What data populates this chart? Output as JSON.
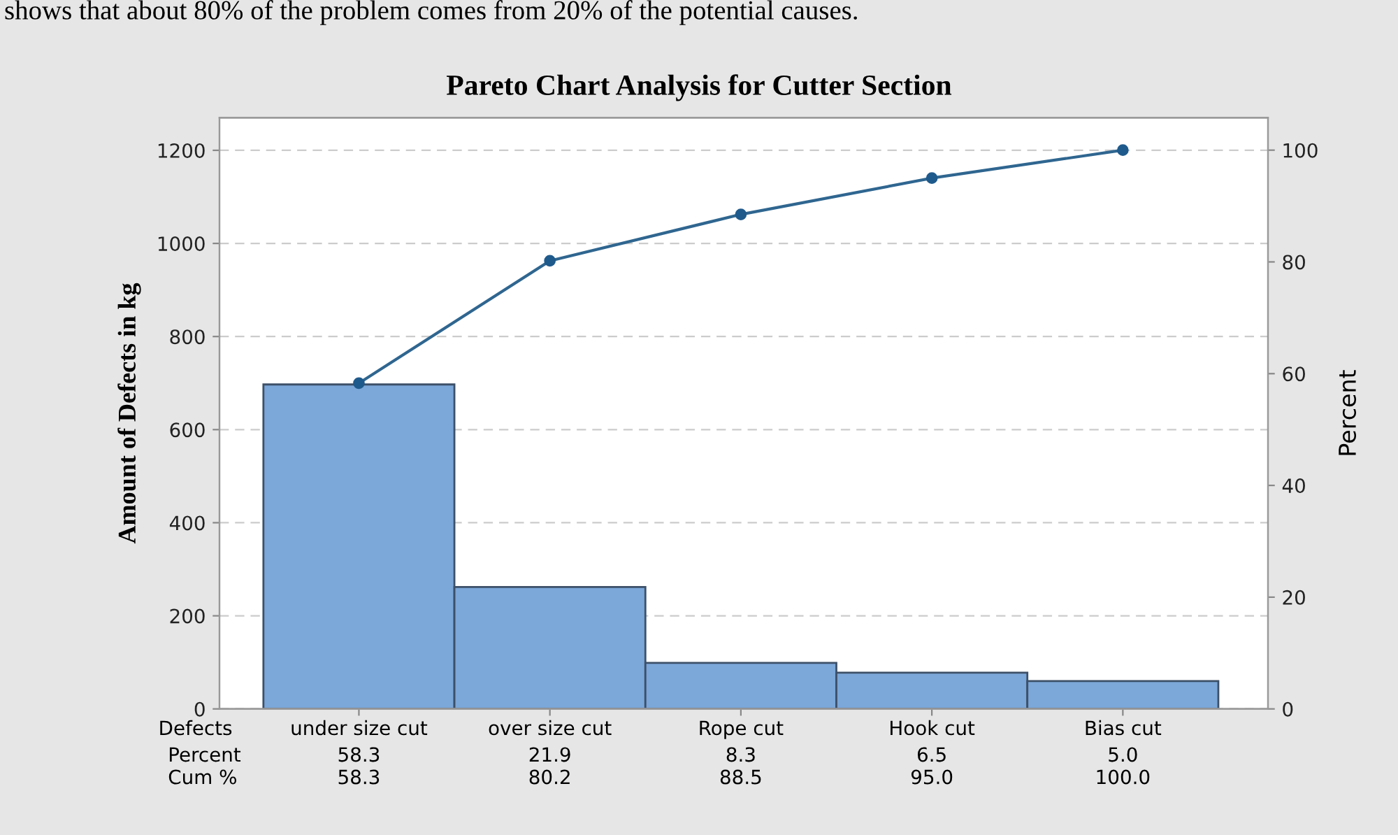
{
  "chart_data": {
    "type": "bar",
    "title": "Pareto Chart Analysis for Cutter Section",
    "xlabel": "Defects",
    "ylabel": "Amount of Defects in kg",
    "y2label": "Percent",
    "annotations": [
      "shows that about 80% of the problem comes from 20% of the potential causes.",
      "Percent",
      "58.3",
      "21.9",
      "8.3",
      "6.5",
      "5.0",
      "Cum %"
    ],
    "categories": [
      "under size cut",
      "over size cut",
      "Rope cut",
      "Hook cut",
      "Bias cut"
    ],
    "series": [
      {
        "color": "#7ba7d9",
        "values": [
          697,
          262,
          99,
          78,
          60
        ]
      },
      {
        "type": "line",
        "axis": "y2",
        "color": "#2f6690",
        "values": [
          58.3,
          80.2,
          88.5,
          95.0,
          100.0
        ],
        "value_labels": [
          "58.3",
          "80.2",
          "88.5",
          "95.0",
          "100.0"
        ]
      }
    ],
    "ylim": [
      0,
      1270
    ],
    "yticks": [
      0,
      200,
      400,
      600,
      800,
      1000,
      1200
    ],
    "y2lim": [
      0,
      105.8
    ],
    "y2ticks": [
      0,
      20,
      40,
      60,
      80,
      100
    ],
    "grid": "y",
    "marker": "circle",
    "line_style": "solid"
  }
}
